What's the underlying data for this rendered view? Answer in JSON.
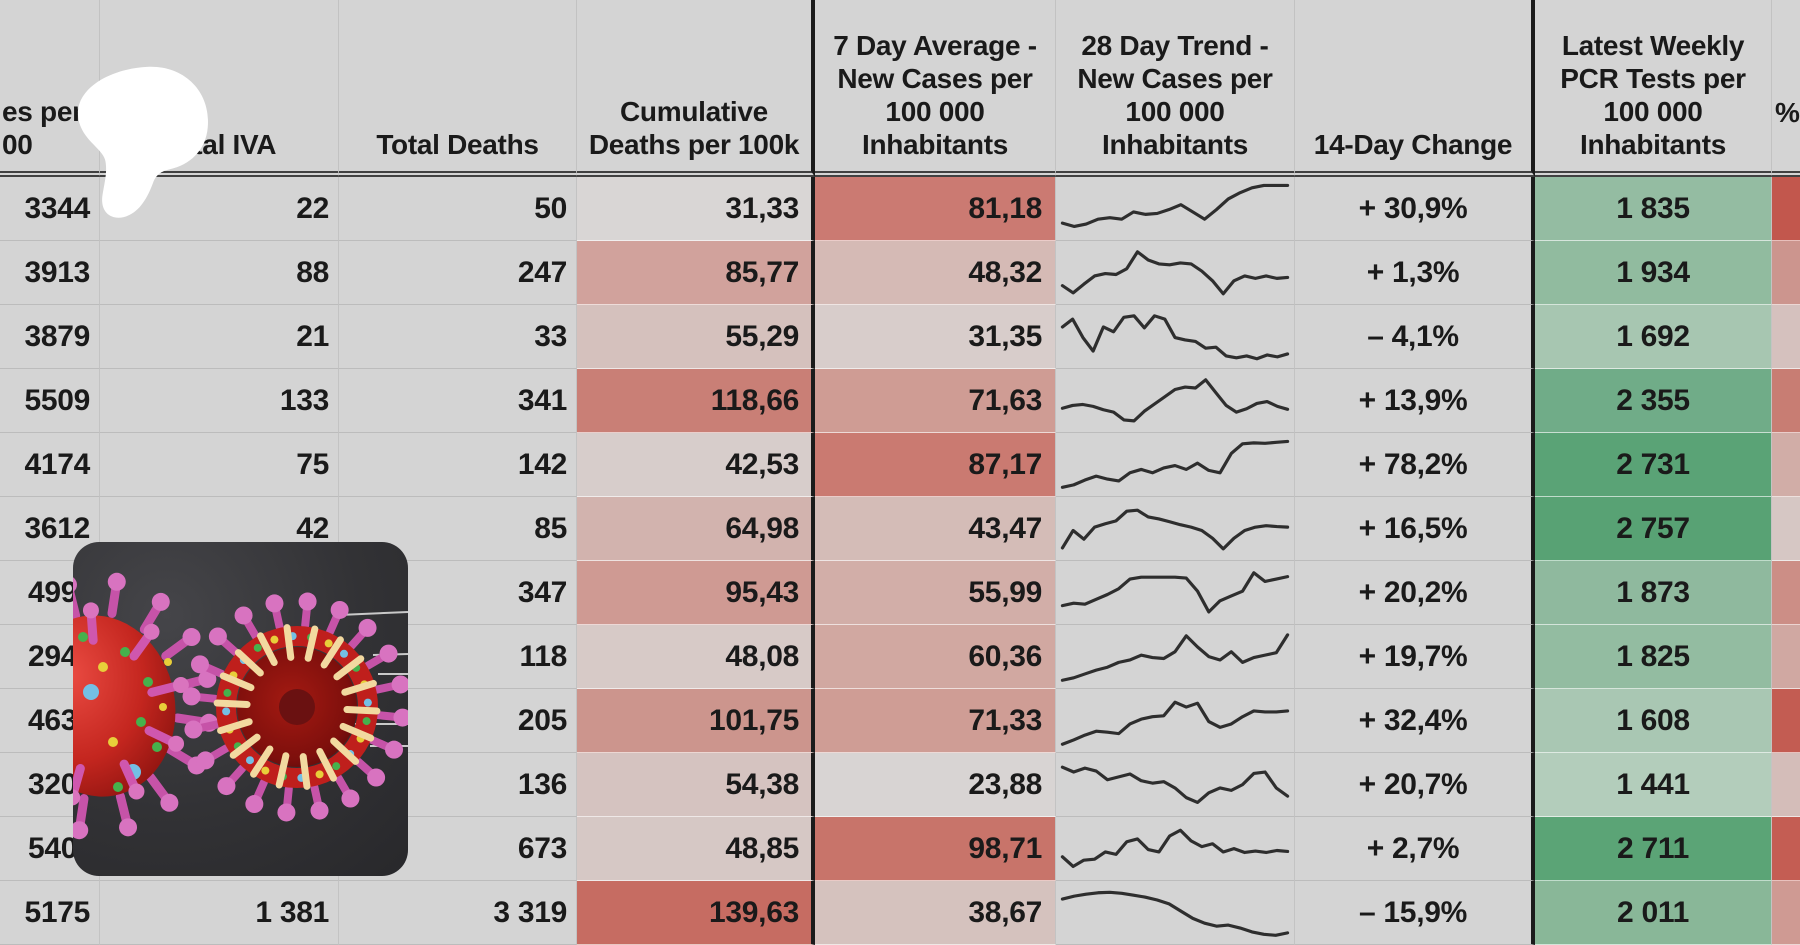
{
  "app": "spreadsheet-covid-dashboard",
  "palette": {
    "cell_bg": "#d4d4d4",
    "grid_line": "#c3c3c3",
    "thick_border": "#1b1b1b",
    "header_underline": "#414141",
    "text": "#1a1a1a",
    "sparkline": "#2e2e2e",
    "red_scale_max": "#c2574d",
    "green_scale_max": "#56a173",
    "blob_color": "#ffffff"
  },
  "columns": [
    {
      "name": "cases-per-100k",
      "label": "es per\n00"
    },
    {
      "name": "total-iva",
      "label": "Total IVA"
    },
    {
      "name": "total-deaths",
      "label": "Total Deaths"
    },
    {
      "name": "cumulative-deaths-per-100k",
      "label": "Cumulative\nDeaths per 100k"
    },
    {
      "name": "7-day-average-new-cases",
      "label": "7 Day Average -\nNew Cases per\n100 000\nInhabitants"
    },
    {
      "name": "28-day-trend-new-cases",
      "label": "28 Day Trend -\nNew Cases per\n100 000\nInhabitants"
    },
    {
      "name": "14-day-change",
      "label": "14-Day Change"
    },
    {
      "name": "latest-weekly-pcr-tests",
      "label": "Latest Weekly\nPCR Tests per\n100 000\nInhabitants"
    },
    {
      "name": "percent-clipped",
      "label": "%"
    }
  ],
  "rows": [
    {
      "cases": "3344",
      "iva": "22",
      "deaths": "50",
      "cum": "31,33",
      "cum_s": "#d9d6d5",
      "avg": "81,18",
      "avg_s": "#cb7a72",
      "change": "+ 30,9%",
      "pcr": "1 835",
      "pcr_s": "#94bca2",
      "right_s": "#c2574d",
      "spark": [
        0.22,
        0.15,
        0.2,
        0.3,
        0.33,
        0.3,
        0.45,
        0.4,
        0.42,
        0.5,
        0.6,
        0.45,
        0.3,
        0.5,
        0.72,
        0.85,
        0.95,
        1.0,
        1.0,
        1.0
      ]
    },
    {
      "cases": "3913",
      "iva": "88",
      "deaths": "247",
      "cum": "85,77",
      "cum_s": "#d1a29c",
      "avg": "48,32",
      "avg_s": "#d5bab5",
      "change": "+ 1,3%",
      "pcr": "1 934",
      "pcr_s": "#91bb9f",
      "right_s": "#cc958e",
      "spark": [
        0.25,
        0.1,
        0.28,
        0.45,
        0.5,
        0.48,
        0.6,
        0.95,
        0.78,
        0.7,
        0.68,
        0.72,
        0.7,
        0.55,
        0.35,
        0.08,
        0.35,
        0.45,
        0.4,
        0.45,
        0.4,
        0.42
      ]
    },
    {
      "cases": "3879",
      "iva": "21",
      "deaths": "33",
      "cum": "55,29",
      "cum_s": "#d5c1bd",
      "avg": "31,35",
      "avg_s": "#d8cdcb",
      "change": "– 4,1%",
      "pcr": "1 692",
      "pcr_s": "#a7c6b1",
      "right_s": "#d5c1be",
      "spark": [
        0.72,
        0.88,
        0.5,
        0.22,
        0.72,
        0.62,
        0.92,
        0.95,
        0.7,
        0.95,
        0.88,
        0.5,
        0.45,
        0.42,
        0.28,
        0.3,
        0.12,
        0.08,
        0.12,
        0.06,
        0.14,
        0.1,
        0.16
      ]
    },
    {
      "cases": "5509",
      "iva": "133",
      "deaths": "341",
      "cum": "118,66",
      "cum_s": "#c97f76",
      "avg": "71,63",
      "avg_s": "#cf9c94",
      "change": "+ 13,9%",
      "pcr": "2 355",
      "pcr_s": "#70ac88",
      "right_s": "#c87d73",
      "spark": [
        0.36,
        0.42,
        0.44,
        0.4,
        0.33,
        0.28,
        0.12,
        0.1,
        0.3,
        0.45,
        0.6,
        0.75,
        0.8,
        0.78,
        0.95,
        0.68,
        0.42,
        0.28,
        0.35,
        0.46,
        0.5,
        0.4,
        0.34
      ]
    },
    {
      "cases": "4174",
      "iva": "75",
      "deaths": "142",
      "cum": "42,53",
      "cum_s": "#d7cdcb",
      "avg": "87,17",
      "avg_s": "#ca7a71",
      "change": "+ 78,2%",
      "pcr": "2 731",
      "pcr_s": "#5aa376",
      "right_s": "#d1ada7",
      "spark": [
        0.05,
        0.1,
        0.2,
        0.28,
        0.22,
        0.18,
        0.35,
        0.42,
        0.35,
        0.45,
        0.5,
        0.42,
        0.55,
        0.4,
        0.35,
        0.75,
        0.95,
        0.97,
        0.96,
        0.98,
        1.0
      ]
    },
    {
      "cases": "3612",
      "iva": "42",
      "deaths": "85",
      "cum": "64,98",
      "cum_s": "#d2b3ae",
      "avg": "43,47",
      "avg_s": "#d4bcb7",
      "change": "+ 16,5%",
      "pcr": "2 757",
      "pcr_s": "#58a274",
      "right_s": "#d6c7c4",
      "spark": [
        0.12,
        0.48,
        0.3,
        0.55,
        0.62,
        0.68,
        0.88,
        0.9,
        0.76,
        0.72,
        0.66,
        0.6,
        0.55,
        0.48,
        0.32,
        0.1,
        0.32,
        0.48,
        0.55,
        0.58,
        0.56,
        0.55
      ]
    },
    {
      "cases": "499",
      "partial": true,
      "iva": "",
      "deaths": "347",
      "cum": "95,43",
      "cum_s": "#cf9a93",
      "avg": "55,99",
      "avg_s": "#d2aea8",
      "change": "+ 20,2%",
      "pcr": "1 873",
      "pcr_s": "#8fb99e",
      "right_s": "#cc8e86",
      "spark": [
        0.25,
        0.3,
        0.28,
        0.38,
        0.48,
        0.6,
        0.8,
        0.84,
        0.84,
        0.84,
        0.84,
        0.82,
        0.55,
        0.12,
        0.35,
        0.45,
        0.55,
        0.93,
        0.75,
        0.8,
        0.85
      ]
    },
    {
      "cases": "294",
      "partial": true,
      "iva": "",
      "deaths": "118",
      "cum": "48,08",
      "cum_s": "#d7cac7",
      "avg": "60,36",
      "avg_s": "#d1a8a1",
      "change": "+ 19,7%",
      "pcr": "1 825",
      "pcr_s": "#93bca1",
      "right_s": "#d0a8a2",
      "spark": [
        0.03,
        0.08,
        0.16,
        0.24,
        0.3,
        0.4,
        0.45,
        0.55,
        0.5,
        0.48,
        0.62,
        0.95,
        0.72,
        0.52,
        0.45,
        0.62,
        0.4,
        0.5,
        0.55,
        0.6,
        0.97
      ]
    },
    {
      "cases": "463",
      "partial": true,
      "iva": "",
      "deaths": "205",
      "cum": "101,75",
      "cum_s": "#cc958d",
      "avg": "71,33",
      "avg_s": "#cf9d95",
      "change": "+ 32,4%",
      "pcr": "1 608",
      "pcr_s": "#a9c7b3",
      "right_s": "#c35c52",
      "spark": [
        0.03,
        0.12,
        0.22,
        0.3,
        0.28,
        0.25,
        0.45,
        0.55,
        0.6,
        0.62,
        0.9,
        0.8,
        0.88,
        0.5,
        0.38,
        0.45,
        0.6,
        0.72,
        0.7,
        0.7,
        0.72
      ]
    },
    {
      "cases": "320",
      "partial": true,
      "iva": "",
      "deaths": "136",
      "cum": "54,38",
      "cum_s": "#d5c3c0",
      "avg": "23,88",
      "avg_s": "#d8d4d3",
      "change": "+ 20,7%",
      "pcr": "1 441",
      "pcr_s": "#b3cdbb",
      "right_s": "#d4bdb9",
      "spark": [
        0.88,
        0.78,
        0.86,
        0.8,
        0.62,
        0.68,
        0.74,
        0.6,
        0.55,
        0.58,
        0.45,
        0.25,
        0.15,
        0.35,
        0.45,
        0.4,
        0.52,
        0.75,
        0.78,
        0.45,
        0.28
      ]
    },
    {
      "cases": "540",
      "partial": true,
      "iva": "",
      "deaths": "673",
      "cum": "48,85",
      "cum_s": "#d6c8c5",
      "avg": "98,71",
      "avg_s": "#c8746a",
      "change": "+ 2,7%",
      "pcr": "2 711",
      "pcr_s": "#5ba476",
      "right_s": "#c45d53",
      "spark": [
        0.35,
        0.15,
        0.28,
        0.3,
        0.45,
        0.4,
        0.66,
        0.72,
        0.5,
        0.45,
        0.78,
        0.9,
        0.68,
        0.56,
        0.62,
        0.45,
        0.52,
        0.44,
        0.47,
        0.44,
        0.48,
        0.46
      ]
    },
    {
      "cases": "5175",
      "iva": "1 381",
      "deaths": "3 319",
      "cum": "139,63",
      "cum_s": "#c66c62",
      "avg": "38,67",
      "avg_s": "#d5c2be",
      "change": "– 15,9%",
      "pcr": "2 011",
      "pcr_s": "#89b798",
      "right_s": "#cf9a93",
      "spark": [
        0.8,
        0.86,
        0.9,
        0.93,
        0.94,
        0.92,
        0.88,
        0.84,
        0.78,
        0.7,
        0.55,
        0.4,
        0.3,
        0.24,
        0.26,
        0.2,
        0.12,
        0.07,
        0.05,
        0.1
      ]
    }
  ]
}
